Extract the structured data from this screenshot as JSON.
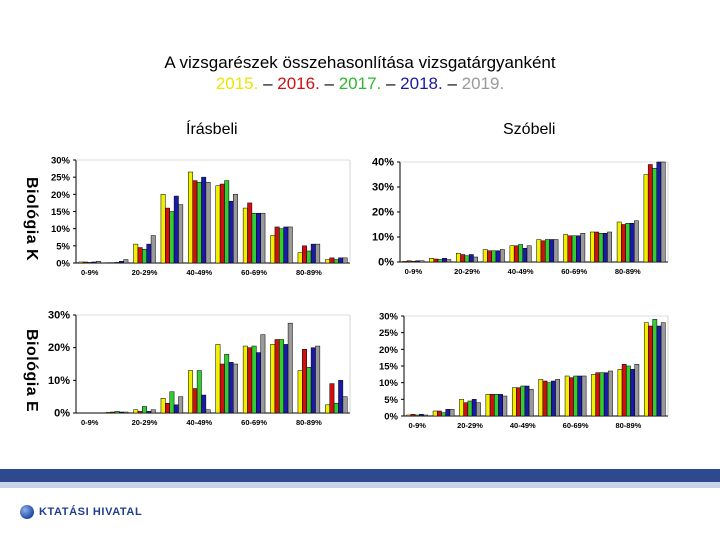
{
  "header": {
    "title_line1": "A vizsgarészek összehasonlítása vizsgatárgyanként",
    "years": [
      {
        "text": "2015.",
        "color": "#e8e800"
      },
      {
        "text": " – ",
        "color": "#000000"
      },
      {
        "text": "2016.",
        "color": "#d01010"
      },
      {
        "text": " – ",
        "color": "#000000"
      },
      {
        "text": "2017.",
        "color": "#2eb82e"
      },
      {
        "text": " – ",
        "color": "#000000"
      },
      {
        "text": "2018.",
        "color": "#1a1a9c"
      },
      {
        "text": " – ",
        "color": "#000000"
      },
      {
        "text": "2019.",
        "color": "#9a9a9a"
      }
    ]
  },
  "columns": {
    "written": "Írásbeli",
    "oral": "Szóbeli"
  },
  "rows": {
    "k": "Biológia K",
    "e": "Biológia E"
  },
  "series_colors": [
    "#f0f000",
    "#d01010",
    "#33cc33",
    "#1a1aa8",
    "#9a9a9a"
  ],
  "chart_data": [
    {
      "id": "k-written",
      "type": "bar",
      "title": "Biológia K – Írásbeli",
      "categories": [
        "0-9%",
        "20-29%",
        "40-49%",
        "60-69%",
        "80-89%"
      ],
      "ylim": [
        0,
        30
      ],
      "yticks": [
        0,
        5,
        10,
        15,
        20,
        25,
        30
      ],
      "groups": [
        [
          0.3,
          0.3,
          0.2,
          0.3,
          0.5
        ],
        [
          0.1,
          0.1,
          0.2,
          0.5,
          1.0
        ],
        [
          5.5,
          4.5,
          4.0,
          5.5,
          8.0
        ],
        [
          20.0,
          16.0,
          15.0,
          19.5,
          17.0
        ],
        [
          26.5,
          24.0,
          23.5,
          25.0,
          23.5
        ],
        [
          22.5,
          23.0,
          24.0,
          18.0,
          20.0
        ],
        [
          16.0,
          17.5,
          14.5,
          14.5,
          14.5
        ],
        [
          8.0,
          10.5,
          10.0,
          10.5,
          10.5
        ],
        [
          3.0,
          5.0,
          3.5,
          5.5,
          5.5
        ],
        [
          1.0,
          1.5,
          1.0,
          1.5,
          1.5
        ]
      ]
    },
    {
      "id": "k-oral",
      "type": "bar",
      "title": "Biológia K – Szóbeli",
      "categories": [
        "0-9%",
        "20-29%",
        "40-49%",
        "60-69%",
        "80-89%"
      ],
      "ylim": [
        0,
        40
      ],
      "yticks": [
        0,
        10,
        20,
        30,
        40
      ],
      "groups": [
        [
          0.3,
          0.5,
          0.3,
          0.5,
          0.5
        ],
        [
          1.5,
          1.2,
          1.0,
          1.5,
          1.0
        ],
        [
          3.5,
          3.0,
          2.5,
          3.0,
          2.0
        ],
        [
          5.0,
          4.5,
          4.5,
          4.5,
          5.0
        ],
        [
          6.5,
          6.5,
          7.0,
          5.5,
          6.5
        ],
        [
          9.0,
          8.5,
          9.0,
          9.0,
          9.0
        ],
        [
          11.0,
          10.5,
          10.5,
          10.5,
          11.5
        ],
        [
          12.0,
          12.0,
          11.5,
          11.5,
          12.0
        ],
        [
          16.0,
          15.0,
          15.5,
          15.5,
          16.5
        ],
        [
          35.0,
          39.0,
          37.5,
          40.0,
          40.0
        ]
      ]
    },
    {
      "id": "e-written",
      "type": "bar",
      "title": "Biológia E – Írásbeli",
      "categories": [
        "0-9%",
        "20-29%",
        "40-49%",
        "60-69%",
        "80-89%"
      ],
      "ylim": [
        0,
        30
      ],
      "yticks": [
        0,
        10,
        20,
        30
      ],
      "groups": [
        [
          0.0,
          0.0,
          0.0,
          0.0,
          0.0
        ],
        [
          0.2,
          0.3,
          0.5,
          0.3,
          0.3
        ],
        [
          1.0,
          0.5,
          2.0,
          0.5,
          1.0
        ],
        [
          4.5,
          3.0,
          6.5,
          2.5,
          5.0
        ],
        [
          13.0,
          7.5,
          13.0,
          5.5,
          1.0
        ],
        [
          21.0,
          15.0,
          18.0,
          15.5,
          15.0
        ],
        [
          20.5,
          20.0,
          20.5,
          18.5,
          24.0
        ],
        [
          21.0,
          22.5,
          22.5,
          21.0,
          27.5
        ],
        [
          13.0,
          19.5,
          14.0,
          20.0,
          20.5
        ],
        [
          2.5,
          9.0,
          3.0,
          10.0,
          5.0
        ]
      ]
    },
    {
      "id": "e-oral",
      "type": "bar",
      "title": "Biológia E – Szóbeli",
      "categories": [
        "0-9%",
        "20-29%",
        "40-49%",
        "60-69%",
        "80-89%"
      ],
      "ylim": [
        0,
        30
      ],
      "yticks": [
        0,
        5,
        10,
        15,
        20,
        25,
        30
      ],
      "groups": [
        [
          0.3,
          0.5,
          0.3,
          0.5,
          0.3
        ],
        [
          1.5,
          1.5,
          1.0,
          2.0,
          2.0
        ],
        [
          5.0,
          4.0,
          4.5,
          5.0,
          4.0
        ],
        [
          6.5,
          6.5,
          6.5,
          6.5,
          6.0
        ],
        [
          8.5,
          8.5,
          9.0,
          9.0,
          8.0
        ],
        [
          11.0,
          10.5,
          10.0,
          10.5,
          11.0
        ],
        [
          12.0,
          11.5,
          12.0,
          12.0,
          12.0
        ],
        [
          12.5,
          13.0,
          13.0,
          13.0,
          13.5
        ],
        [
          14.0,
          15.5,
          15.0,
          14.0,
          15.5
        ],
        [
          28.0,
          27.0,
          29.0,
          27.0,
          28.0
        ]
      ]
    }
  ],
  "footer": {
    "org": "KTATÁSI HIVATAL"
  }
}
